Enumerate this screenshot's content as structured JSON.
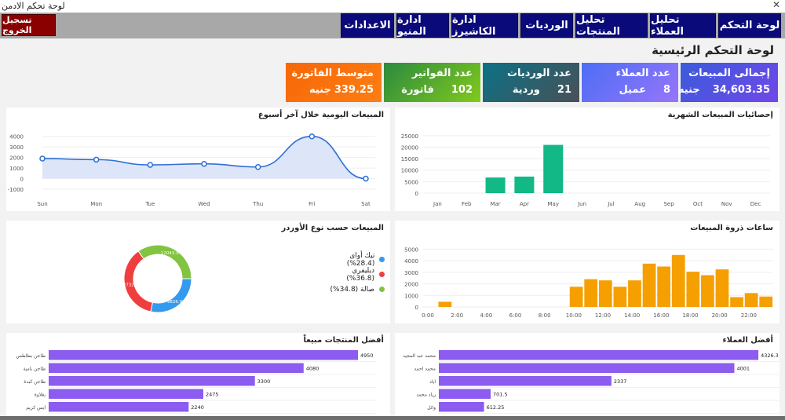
{
  "window": {
    "title": "لوحة تحكم الادمن",
    "close_glyph": "✕"
  },
  "nav": {
    "items": [
      "لوحة التحكم",
      "تحليل العملاء",
      "تحليل المنتجات",
      "الورديات",
      "ادارة الكاشيرز",
      "ادارة المنيو",
      "الاعدادات"
    ],
    "logout_label": "تسجيل الخروج"
  },
  "page_title": "لوحة التحكم الرئيسية",
  "cards": [
    {
      "label": "إجمالى المبيعات",
      "value": "34,603.35",
      "unit": "جنيه",
      "color_a": "#3b5bdb",
      "color_b": "#7048e8"
    },
    {
      "label": "عدد العملاء",
      "value": "8",
      "unit": "عميل",
      "color_a": "#4c6ef5",
      "color_b": "#9775fa"
    },
    {
      "label": "عدد الورديات",
      "value": "21",
      "unit": "وردية",
      "color_a": "#0b7285",
      "color_b": "#495057"
    },
    {
      "label": "عدد الفواتير",
      "value": "102",
      "unit": "فاتورة",
      "color_a": "#2b8a3e",
      "color_b": "#82c91e"
    },
    {
      "label": "متوسط الفاتورة",
      "value": "339.25",
      "unit": "جنيه",
      "color_a": "#f76707",
      "color_b": "#fd7e14"
    }
  ],
  "panels": {
    "daily_title": "المبيعات اليومية خلال آخر أسبوع",
    "monthly_title": "إحصائيات المبيعات الشهرية",
    "ordertype_title": "المبيعات حسب نوع الأوردر",
    "peak_title": "ساعات ذروة المبيعات",
    "products_title": "أفضل المنتجات مبيعاً",
    "customers_title": "أفضل العملاء"
  },
  "chart_data": [
    {
      "id": "daily",
      "type": "area",
      "categories": [
        "Sun",
        "Mon",
        "Tue",
        "Wed",
        "Thu",
        "Fri",
        "Sat"
      ],
      "values": [
        1900,
        1800,
        1300,
        1400,
        1100,
        4000,
        0
      ],
      "yticks": [
        -1000,
        0,
        1000,
        2000,
        3000,
        4000
      ],
      "ylim": [
        -1000,
        4500
      ],
      "color": "#2f6fd6",
      "fill": "#dde6f8"
    },
    {
      "id": "monthly",
      "type": "bar",
      "categories": [
        "Jan",
        "Feb",
        "Mar",
        "Apr",
        "May",
        "Jun",
        "Jul",
        "Aug",
        "Sep",
        "Oct",
        "Nov",
        "Dec"
      ],
      "values": [
        0,
        0,
        6800,
        7200,
        21000,
        0,
        0,
        0,
        0,
        0,
        0,
        0
      ],
      "yticks": [
        0,
        5000,
        10000,
        15000,
        20000,
        25000
      ],
      "ylim": [
        0,
        27000
      ],
      "color": "#12b886"
    },
    {
      "id": "ordertype",
      "type": "pie",
      "labels": [
        "تيك أواى (28.4%)",
        "ديليفري (36.8%)",
        "صالة (34.8%)"
      ],
      "values": [
        9826.98,
        12732.4,
        12043.97
      ],
      "slice_labels": [
        "9826.98",
        "12732.4",
        "12043.97"
      ],
      "colors": [
        "#339af0",
        "#f03e3e",
        "#82c341"
      ]
    },
    {
      "id": "peak",
      "type": "bar",
      "categories": [
        "0:00",
        "1:00",
        "2:00",
        "3:00",
        "4:00",
        "5:00",
        "6:00",
        "7:00",
        "8:00",
        "9:00",
        "10:00",
        "11:00",
        "12:00",
        "13:00",
        "14:00",
        "15:00",
        "16:00",
        "17:00",
        "18:00",
        "19:00",
        "20:00",
        "21:00",
        "22:00",
        "23:00"
      ],
      "values": [
        0,
        450,
        0,
        0,
        0,
        0,
        0,
        0,
        0,
        0,
        1750,
        2400,
        2300,
        1750,
        2300,
        3750,
        3500,
        4500,
        3050,
        2750,
        3250,
        850,
        1200,
        900
      ],
      "xticks": [
        "0:00",
        "2:00",
        "4:00",
        "6:00",
        "8:00",
        "10:00",
        "12:00",
        "14:00",
        "16:00",
        "18:00",
        "20:00",
        "22:00"
      ],
      "yticks": [
        0,
        1000,
        2000,
        3000,
        4000,
        5000
      ],
      "ylim": [
        0,
        5300
      ],
      "color": "#f59f00"
    },
    {
      "id": "products",
      "type": "bar",
      "orientation": "horizontal",
      "categories": [
        "طاجن بطاطس",
        "طاجن بامية",
        "طاجن كبدة",
        "بقلاوة",
        "ايس كريم"
      ],
      "values": [
        4950,
        4080,
        3300,
        2475,
        2240
      ],
      "value_labels": [
        "4950",
        "4080",
        "3300",
        "2475",
        "2240"
      ],
      "xlim": [
        0,
        5000
      ],
      "color": "#8c5cf0"
    },
    {
      "id": "customers",
      "type": "bar",
      "orientation": "horizontal",
      "categories": [
        "محمد عبد المجيد",
        "محمد احمد",
        "اياد",
        "زياد محمد",
        "وائل"
      ],
      "values": [
        4326.3,
        4001,
        2337,
        701.5,
        612.25
      ],
      "value_labels": [
        "4326.3",
        "4001",
        "2337",
        "701.5",
        "612.25"
      ],
      "xlim": [
        0,
        4400
      ],
      "color": "#8c5cf0"
    }
  ]
}
